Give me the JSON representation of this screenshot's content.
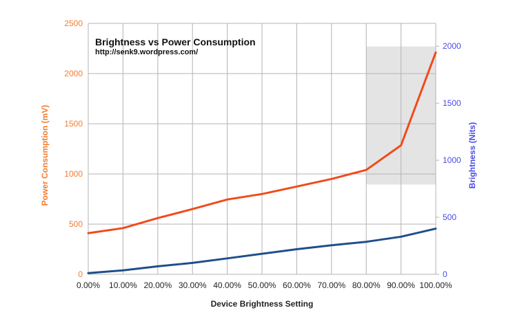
{
  "chart_data": {
    "type": "line",
    "title": "Brightness vs Power Consumption",
    "subtitle": "http://senk9.wordpress.com/",
    "xlabel": "Device Brightness Setting",
    "ylabel_left": "Power Consumption (mV)",
    "ylabel_right": "Brightness (Nits)",
    "categories": [
      "0.00%",
      "10.00%",
      "20.00%",
      "30.00%",
      "40.00%",
      "50.00%",
      "60.00%",
      "70.00%",
      "80.00%",
      "90.00%",
      "100.00%"
    ],
    "y_left": {
      "lim": [
        0,
        2500
      ],
      "ticks": [
        "0",
        "500",
        "1000",
        "1500",
        "2000",
        "2500"
      ],
      "color": "#f47c2f"
    },
    "y_right": {
      "lim": [
        0,
        2200
      ],
      "ticks": [
        "0",
        "500",
        "1000",
        "1500",
        "2000"
      ],
      "color": "#4a4ae8"
    },
    "series": [
      {
        "axis": "left",
        "color": "#f04a1a",
        "values": [
          410,
          460,
          560,
          650,
          745,
          800,
          875,
          950,
          1040,
          1285,
          2210
        ]
      },
      {
        "axis": "right",
        "color": "#1f4e8a",
        "values": [
          10,
          35,
          70,
          100,
          140,
          180,
          220,
          255,
          285,
          330,
          400
        ]
      }
    ],
    "highlight": {
      "x_from": "80.00%",
      "x_to": "100.00%",
      "y_left_from": 895,
      "y_left_to": 2270,
      "color": "#e4e4e4"
    },
    "grid": true
  }
}
